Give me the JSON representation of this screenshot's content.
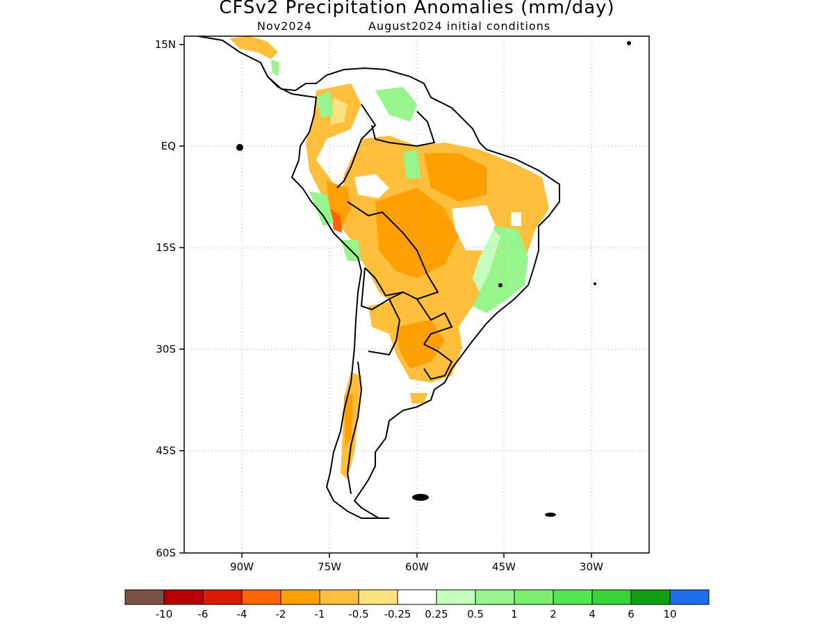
{
  "title": "CFSv2 Precipitation Anomalies (mm/day)",
  "subtitle_left": "Nov2024",
  "subtitle_right": "August2024 initial conditions",
  "lat_ticks": [
    "15N",
    "EQ",
    "15S",
    "30S",
    "45S",
    "60S"
  ],
  "lon_ticks": [
    "90W",
    "75W",
    "60W",
    "45W",
    "30W"
  ],
  "colorbar": {
    "colors": [
      "#7b5145",
      "#b80000",
      "#dc1a00",
      "#ff6400",
      "#ffa000",
      "#ffbe3c",
      "#ffe27d",
      "#ffffff",
      "#c4ffbe",
      "#96f58c",
      "#78f06e",
      "#50e650",
      "#37d337",
      "#0fa00f",
      "#1e6eeb"
    ],
    "labels": [
      "-10",
      "-6",
      "-4",
      "-2",
      "-1",
      "-0.5",
      "-0.25",
      "0.25",
      "0.5",
      "1",
      "2",
      "4",
      "6",
      "10"
    ]
  },
  "colors": {
    "orange": "#ffa000",
    "light_orange": "#ffbe3c",
    "yellow": "#ffe27d",
    "light_green": "#c4ffbe",
    "green": "#96f58c",
    "dark_orange": "#ff6400"
  }
}
